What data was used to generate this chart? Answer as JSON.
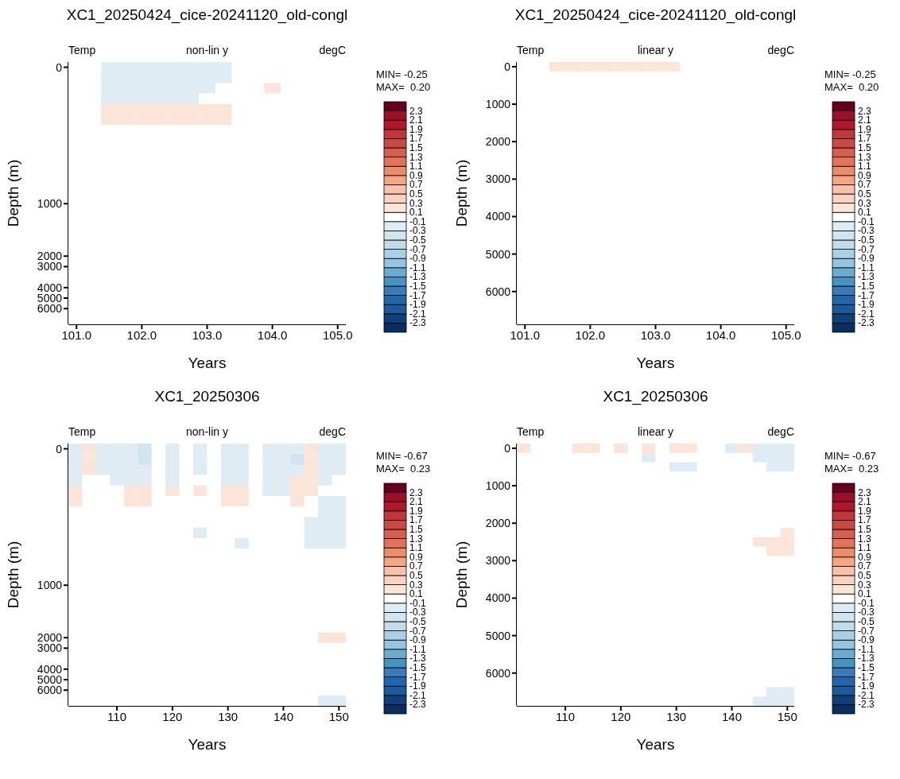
{
  "chart_data": [
    {
      "type": "heatmap",
      "title": "XC1_20250424_cice-20241120_old-congl",
      "xlabel": "Years",
      "ylabel": "Depth (m)",
      "annotations": [
        "Temp",
        "non-lin y",
        "degC",
        "MIN= -0.25",
        "MAX=  0.20"
      ],
      "categories": [
        "101.0",
        null,
        null,
        null,
        "102.0",
        null,
        null,
        null,
        "103.0",
        null,
        null,
        null,
        "104.0",
        null,
        null,
        null,
        "105.0"
      ],
      "y_categories": [
        "0",
        null,
        null,
        null,
        null,
        null,
        null,
        null,
        null,
        null,
        null,
        null,
        null,
        "1000",
        null,
        null,
        null,
        null,
        "2000",
        "3000",
        null,
        "4000",
        "5000",
        "6000",
        null
      ],
      "clim": [
        -2.5,
        2.5
      ],
      "cticks": [
        -2.3,
        -2.1,
        -1.9,
        -1.7,
        -1.5,
        -1.3,
        -1.1,
        -0.9,
        -0.7,
        -0.5,
        -0.3,
        -0.1,
        0.1,
        0.3,
        0.5,
        0.7,
        0.9,
        1.1,
        1.3,
        1.5,
        1.7,
        1.9,
        2.1,
        2.3
      ],
      "cells": [
        [
          0,
          0,
          -0.2,
          -0.2,
          -0.2,
          -0.2,
          -0.2,
          -0.2,
          -0.2,
          -0.2,
          0,
          0,
          0,
          0,
          0,
          0,
          0
        ],
        [
          0,
          0,
          -0.2,
          -0.2,
          -0.2,
          -0.2,
          -0.2,
          -0.2,
          -0.2,
          -0.2,
          0,
          0,
          0,
          0,
          0,
          0,
          0
        ],
        [
          0,
          0,
          -0.2,
          -0.2,
          -0.2,
          -0.2,
          -0.2,
          -0.2,
          -0.2,
          0,
          0,
          0,
          0.2,
          0,
          0,
          0,
          0
        ],
        [
          0,
          0,
          -0.2,
          -0.2,
          -0.2,
          -0.2,
          -0.2,
          -0.2,
          0,
          0,
          0,
          0,
          0,
          0,
          0,
          0,
          0
        ],
        [
          0,
          0,
          0.2,
          0.2,
          0.2,
          0.2,
          0.2,
          0.2,
          0.2,
          0.2,
          0,
          0,
          0,
          0,
          0,
          0,
          0
        ],
        [
          0,
          0,
          0.2,
          0.2,
          0.2,
          0.2,
          0.2,
          0.2,
          0.2,
          0.2,
          0,
          0,
          0,
          0,
          0,
          0,
          0
        ],
        [
          0,
          0,
          0,
          0,
          0,
          0,
          0,
          0,
          0,
          0,
          0,
          0,
          0,
          0,
          0,
          0,
          0
        ],
        [
          0,
          0,
          0,
          0,
          0,
          0,
          0,
          0,
          0,
          0,
          0,
          0,
          0,
          0,
          0,
          0,
          0
        ],
        [
          0,
          0,
          0,
          0,
          0,
          0,
          0,
          0,
          0,
          0,
          0,
          0,
          0,
          0,
          0,
          0,
          0
        ],
        [
          0,
          0,
          0,
          0,
          0,
          0,
          0,
          0,
          0,
          0,
          0,
          0,
          0,
          0,
          0,
          0,
          0
        ],
        [
          0,
          0,
          0,
          0,
          0,
          0,
          0,
          0,
          0,
          0,
          0,
          0,
          0,
          0,
          0,
          0,
          0
        ],
        [
          0,
          0,
          0,
          0,
          0,
          0,
          0,
          0,
          0,
          0,
          0,
          0,
          0,
          0,
          0,
          0,
          0
        ],
        [
          0,
          0,
          0,
          0,
          0,
          0,
          0,
          0,
          0,
          0,
          0,
          0,
          0,
          0,
          0,
          0,
          0
        ],
        [
          0,
          0,
          0,
          0,
          0,
          0,
          0,
          0,
          0,
          0,
          0,
          0,
          0,
          0,
          0,
          0,
          0
        ],
        [
          0,
          0,
          0,
          0,
          0,
          0,
          0,
          0,
          0,
          0,
          0,
          0,
          0,
          0,
          0,
          0,
          0
        ],
        [
          0,
          0,
          0,
          0,
          0,
          0,
          0,
          0,
          0,
          0,
          0,
          0,
          0,
          0,
          0,
          0,
          0
        ],
        [
          0,
          0,
          0,
          0,
          0,
          0,
          0,
          0,
          0,
          0,
          0,
          0,
          0,
          0,
          0,
          0,
          0
        ],
        [
          0,
          0,
          0,
          0,
          0,
          0,
          0,
          0,
          0,
          0,
          0,
          0,
          0,
          0,
          0,
          0,
          0
        ],
        [
          0,
          0,
          0,
          0,
          0,
          0,
          0,
          0,
          0,
          0,
          0,
          0,
          0,
          0,
          0,
          0,
          0
        ],
        [
          0,
          0,
          0,
          0,
          0,
          0,
          0,
          0,
          0,
          0,
          0,
          0,
          0,
          0,
          0,
          0,
          0
        ],
        [
          0,
          0,
          0,
          0,
          0,
          0,
          0,
          0,
          0,
          0,
          0,
          0,
          0,
          0,
          0,
          0,
          0
        ],
        [
          0,
          0,
          0,
          0,
          0,
          0,
          0,
          0,
          0,
          0,
          0,
          0,
          0,
          0,
          0,
          0,
          0
        ],
        [
          0,
          0,
          0,
          0,
          0,
          0,
          0,
          0,
          0,
          0,
          0,
          0,
          0,
          0,
          0,
          0,
          0
        ],
        [
          0,
          0,
          0,
          0,
          0,
          0,
          0,
          0,
          0,
          0,
          0,
          0,
          0,
          0,
          0,
          0,
          0
        ],
        [
          0,
          0,
          0,
          0,
          0,
          0,
          0,
          0,
          0,
          0,
          0,
          0,
          0,
          0,
          0,
          0,
          0
        ]
      ]
    },
    {
      "type": "heatmap",
      "title": "XC1_20250424_cice-20241120_old-congl",
      "xlabel": "Years",
      "ylabel": "Depth (m)",
      "annotations": [
        "Temp",
        "linear y",
        "degC",
        "MIN= -0.25",
        "MAX=  0.20"
      ],
      "categories": [
        "101.0",
        null,
        null,
        null,
        "102.0",
        null,
        null,
        null,
        "103.0",
        null,
        null,
        null,
        "104.0",
        null,
        null,
        null,
        "105.0"
      ],
      "y_categories": [
        "0",
        null,
        null,
        null,
        "1000",
        null,
        null,
        null,
        "2000",
        null,
        null,
        null,
        "3000",
        null,
        null,
        null,
        "4000",
        null,
        null,
        null,
        "5000",
        null,
        null,
        null,
        "6000",
        null,
        null,
        null
      ],
      "clim": [
        -2.5,
        2.5
      ],
      "cticks": [
        -2.3,
        -2.1,
        -1.9,
        -1.7,
        -1.5,
        -1.3,
        -1.1,
        -0.9,
        -0.7,
        -0.5,
        -0.3,
        -0.1,
        0.1,
        0.3,
        0.5,
        0.7,
        0.9,
        1.1,
        1.3,
        1.5,
        1.7,
        1.9,
        2.1,
        2.3
      ],
      "cells": [
        [
          0,
          0,
          0.2,
          0.2,
          0.2,
          0.2,
          0.2,
          0.2,
          0.2,
          0.2,
          0,
          0,
          0,
          0,
          0,
          0,
          0
        ],
        [
          0,
          0,
          0,
          0,
          0,
          0,
          0,
          0,
          0,
          0,
          0,
          0,
          0,
          0,
          0,
          0,
          0
        ],
        [
          0,
          0,
          0,
          0,
          0,
          0,
          0,
          0,
          0,
          0,
          0,
          0,
          0,
          0,
          0,
          0,
          0
        ],
        [
          0,
          0,
          0,
          0,
          0,
          0,
          0,
          0,
          0,
          0,
          0,
          0,
          0,
          0,
          0,
          0,
          0
        ],
        [
          0,
          0,
          0,
          0,
          0,
          0,
          0,
          0,
          0,
          0,
          0,
          0,
          0,
          0,
          0,
          0,
          0
        ],
        [
          0,
          0,
          0,
          0,
          0,
          0,
          0,
          0,
          0,
          0,
          0,
          0,
          0,
          0,
          0,
          0,
          0
        ],
        [
          0,
          0,
          0,
          0,
          0,
          0,
          0,
          0,
          0,
          0,
          0,
          0,
          0,
          0,
          0,
          0,
          0
        ],
        [
          0,
          0,
          0,
          0,
          0,
          0,
          0,
          0,
          0,
          0,
          0,
          0,
          0,
          0,
          0,
          0,
          0
        ],
        [
          0,
          0,
          0,
          0,
          0,
          0,
          0,
          0,
          0,
          0,
          0,
          0,
          0,
          0,
          0,
          0,
          0
        ],
        [
          0,
          0,
          0,
          0,
          0,
          0,
          0,
          0,
          0,
          0,
          0,
          0,
          0,
          0,
          0,
          0,
          0
        ],
        [
          0,
          0,
          0,
          0,
          0,
          0,
          0,
          0,
          0,
          0,
          0,
          0,
          0,
          0,
          0,
          0,
          0
        ],
        [
          0,
          0,
          0,
          0,
          0,
          0,
          0,
          0,
          0,
          0,
          0,
          0,
          0,
          0,
          0,
          0,
          0
        ],
        [
          0,
          0,
          0,
          0,
          0,
          0,
          0,
          0,
          0,
          0,
          0,
          0,
          0,
          0,
          0,
          0,
          0
        ],
        [
          0,
          0,
          0,
          0,
          0,
          0,
          0,
          0,
          0,
          0,
          0,
          0,
          0,
          0,
          0,
          0,
          0
        ],
        [
          0,
          0,
          0,
          0,
          0,
          0,
          0,
          0,
          0,
          0,
          0,
          0,
          0,
          0,
          0,
          0,
          0
        ],
        [
          0,
          0,
          0,
          0,
          0,
          0,
          0,
          0,
          0,
          0,
          0,
          0,
          0,
          0,
          0,
          0,
          0
        ],
        [
          0,
          0,
          0,
          0,
          0,
          0,
          0,
          0,
          0,
          0,
          0,
          0,
          0,
          0,
          0,
          0,
          0
        ],
        [
          0,
          0,
          0,
          0,
          0,
          0,
          0,
          0,
          0,
          0,
          0,
          0,
          0,
          0,
          0,
          0,
          0
        ],
        [
          0,
          0,
          0,
          0,
          0,
          0,
          0,
          0,
          0,
          0,
          0,
          0,
          0,
          0,
          0,
          0,
          0
        ],
        [
          0,
          0,
          0,
          0,
          0,
          0,
          0,
          0,
          0,
          0,
          0,
          0,
          0,
          0,
          0,
          0,
          0
        ],
        [
          0,
          0,
          0,
          0,
          0,
          0,
          0,
          0,
          0,
          0,
          0,
          0,
          0,
          0,
          0,
          0,
          0
        ],
        [
          0,
          0,
          0,
          0,
          0,
          0,
          0,
          0,
          0,
          0,
          0,
          0,
          0,
          0,
          0,
          0,
          0
        ],
        [
          0,
          0,
          0,
          0,
          0,
          0,
          0,
          0,
          0,
          0,
          0,
          0,
          0,
          0,
          0,
          0,
          0
        ],
        [
          0,
          0,
          0,
          0,
          0,
          0,
          0,
          0,
          0,
          0,
          0,
          0,
          0,
          0,
          0,
          0,
          0
        ],
        [
          0,
          0,
          0,
          0,
          0,
          0,
          0,
          0,
          0,
          0,
          0,
          0,
          0,
          0,
          0,
          0,
          0
        ],
        [
          0,
          0,
          0,
          0,
          0,
          0,
          0,
          0,
          0,
          0,
          0,
          0,
          0,
          0,
          0,
          0,
          0
        ],
        [
          0,
          0,
          0,
          0,
          0,
          0,
          0,
          0,
          0,
          0,
          0,
          0,
          0,
          0,
          0,
          0,
          0
        ],
        [
          0,
          0,
          0,
          0,
          0,
          0,
          0,
          0,
          0,
          0,
          0,
          0,
          0,
          0,
          0,
          0,
          0
        ]
      ]
    },
    {
      "type": "heatmap",
      "title": "XC1_20250306",
      "xlabel": "Years",
      "ylabel": "Depth (m)",
      "annotations": [
        "Temp",
        "non-lin y",
        "degC",
        "MIN= -0.67",
        "MAX=  0.23"
      ],
      "categories": [
        null,
        null,
        null,
        "110",
        null,
        null,
        null,
        "120",
        null,
        null,
        null,
        "130",
        null,
        null,
        null,
        "140",
        null,
        null,
        null,
        "150"
      ],
      "y_categories": [
        "0",
        null,
        null,
        null,
        null,
        null,
        null,
        null,
        null,
        null,
        null,
        null,
        null,
        "1000",
        null,
        null,
        null,
        null,
        "2000",
        "3000",
        null,
        "4000",
        "5000",
        "6000",
        null
      ],
      "clim": [
        -2.5,
        2.5
      ],
      "cticks": [
        -2.3,
        -2.1,
        -1.9,
        -1.7,
        -1.5,
        -1.3,
        -1.1,
        -0.9,
        -0.7,
        -0.5,
        -0.3,
        -0.1,
        0.1,
        0.3,
        0.5,
        0.7,
        0.9,
        1.1,
        1.3,
        1.5,
        1.7,
        1.9,
        2.1,
        2.3
      ],
      "cells": [
        [
          -0.2,
          0.2,
          -0.2,
          -0.2,
          -0.2,
          -0.4,
          0,
          -0.2,
          0,
          -0.2,
          0,
          -0.2,
          -0.2,
          0,
          -0.2,
          -0.2,
          -0.2,
          0.2,
          -0.2,
          -0.2
        ],
        [
          -0.2,
          0.2,
          -0.2,
          -0.2,
          -0.2,
          -0.4,
          0,
          -0.2,
          0,
          -0.2,
          0,
          -0.2,
          -0.2,
          0,
          -0.2,
          -0.2,
          -0.4,
          0.2,
          -0.2,
          -0.2
        ],
        [
          -0.2,
          0.2,
          -0.2,
          -0.2,
          -0.2,
          -0.2,
          0,
          -0.2,
          0,
          -0.2,
          0,
          -0.2,
          -0.2,
          0,
          -0.2,
          -0.2,
          -0.2,
          0.2,
          -0.2,
          -0.2
        ],
        [
          -0.2,
          0,
          0,
          -0.2,
          -0.2,
          -0.2,
          0,
          -0.2,
          0,
          0,
          0,
          -0.2,
          -0.2,
          0,
          -0.2,
          -0.2,
          0.2,
          0.2,
          -0.2,
          0
        ],
        [
          0.2,
          0,
          0,
          0,
          0.2,
          0.2,
          0,
          0.2,
          0,
          0.2,
          0,
          0.2,
          0.2,
          0,
          -0.2,
          -0.2,
          0.2,
          0.2,
          0,
          0
        ],
        [
          0.2,
          0,
          0,
          0,
          0.2,
          0.2,
          0,
          0,
          0,
          0,
          0,
          0.2,
          0.2,
          0,
          0,
          0,
          0.2,
          0,
          -0.2,
          -0.2
        ],
        [
          0,
          0,
          0,
          0,
          0,
          0,
          0,
          0,
          0,
          0,
          0,
          0,
          0,
          0,
          0,
          0,
          0,
          0,
          -0.2,
          -0.2
        ],
        [
          0,
          0,
          0,
          0,
          0,
          0,
          0,
          0,
          0,
          0,
          0,
          0,
          0,
          0,
          0,
          0,
          0,
          -0.2,
          -0.2,
          -0.2
        ],
        [
          0,
          0,
          0,
          0,
          0,
          0,
          0,
          0,
          0,
          -0.2,
          0,
          0,
          0,
          0,
          0,
          0,
          0,
          -0.2,
          -0.2,
          -0.2
        ],
        [
          0,
          0,
          0,
          0,
          0,
          0,
          0,
          0,
          0,
          0,
          0,
          0,
          -0.2,
          0,
          0,
          0,
          0,
          -0.2,
          -0.2,
          -0.2
        ],
        [
          0,
          0,
          0,
          0,
          0,
          0,
          0,
          0,
          0,
          0,
          0,
          0,
          0,
          0,
          0,
          0,
          0,
          0,
          0,
          0
        ],
        [
          0,
          0,
          0,
          0,
          0,
          0,
          0,
          0,
          0,
          0,
          0,
          0,
          0,
          0,
          0,
          0,
          0,
          0,
          0,
          0
        ],
        [
          0,
          0,
          0,
          0,
          0,
          0,
          0,
          0,
          0,
          0,
          0,
          0,
          0,
          0,
          0,
          0,
          0,
          0,
          0,
          0
        ],
        [
          0,
          0,
          0,
          0,
          0,
          0,
          0,
          0,
          0,
          0,
          0,
          0,
          0,
          0,
          0,
          0,
          0,
          0,
          0,
          0
        ],
        [
          0,
          0,
          0,
          0,
          0,
          0,
          0,
          0,
          0,
          0,
          0,
          0,
          0,
          0,
          0,
          0,
          0,
          0,
          0,
          0
        ],
        [
          0,
          0,
          0,
          0,
          0,
          0,
          0,
          0,
          0,
          0,
          0,
          0,
          0,
          0,
          0,
          0,
          0,
          0,
          0,
          0
        ],
        [
          0,
          0,
          0,
          0,
          0,
          0,
          0,
          0,
          0,
          0,
          0,
          0,
          0,
          0,
          0,
          0,
          0,
          0,
          0,
          0
        ],
        [
          0,
          0,
          0,
          0,
          0,
          0,
          0,
          0,
          0,
          0,
          0,
          0,
          0,
          0,
          0,
          0,
          0,
          0,
          0,
          0
        ],
        [
          0,
          0,
          0,
          0,
          0,
          0,
          0,
          0,
          0,
          0,
          0,
          0,
          0,
          0,
          0,
          0,
          0,
          0,
          0.2,
          0.2
        ],
        [
          0,
          0,
          0,
          0,
          0,
          0,
          0,
          0,
          0,
          0,
          0,
          0,
          0,
          0,
          0,
          0,
          0,
          0,
          0,
          0
        ],
        [
          0,
          0,
          0,
          0,
          0,
          0,
          0,
          0,
          0,
          0,
          0,
          0,
          0,
          0,
          0,
          0,
          0,
          0,
          0,
          0
        ],
        [
          0,
          0,
          0,
          0,
          0,
          0,
          0,
          0,
          0,
          0,
          0,
          0,
          0,
          0,
          0,
          0,
          0,
          0,
          0,
          0
        ],
        [
          0,
          0,
          0,
          0,
          0,
          0,
          0,
          0,
          0,
          0,
          0,
          0,
          0,
          0,
          0,
          0,
          0,
          0,
          0,
          0
        ],
        [
          0,
          0,
          0,
          0,
          0,
          0,
          0,
          0,
          0,
          0,
          0,
          0,
          0,
          0,
          0,
          0,
          0,
          0,
          0,
          0
        ],
        [
          0,
          0,
          0,
          0,
          0,
          0,
          0,
          0,
          0,
          0,
          0,
          0,
          0,
          0,
          0,
          0,
          0,
          0,
          -0.2,
          -0.2
        ]
      ]
    },
    {
      "type": "heatmap",
      "title": "XC1_20250306",
      "xlabel": "Years",
      "ylabel": "Depth (m)",
      "annotations": [
        "Temp",
        "linear y",
        "degC",
        "MIN= -0.67",
        "MAX=  0.23"
      ],
      "categories": [
        null,
        null,
        null,
        "110",
        null,
        null,
        null,
        "120",
        null,
        null,
        null,
        "130",
        null,
        null,
        null,
        "140",
        null,
        null,
        null,
        "150"
      ],
      "y_categories": [
        "0",
        null,
        null,
        null,
        "1000",
        null,
        null,
        null,
        "2000",
        null,
        null,
        null,
        "3000",
        null,
        null,
        null,
        "4000",
        null,
        null,
        null,
        "5000",
        null,
        null,
        null,
        "6000",
        null,
        null,
        null
      ],
      "clim": [
        -2.5,
        2.5
      ],
      "cticks": [
        -2.3,
        -2.1,
        -1.9,
        -1.7,
        -1.5,
        -1.3,
        -1.1,
        -0.9,
        -0.7,
        -0.5,
        -0.3,
        -0.1,
        0.1,
        0.3,
        0.5,
        0.7,
        0.9,
        1.1,
        1.3,
        1.5,
        1.7,
        1.9,
        2.1,
        2.3
      ],
      "cells": [
        [
          0.2,
          0,
          0,
          0,
          0.2,
          0.2,
          0,
          0.2,
          0,
          0.2,
          0,
          0.2,
          0.2,
          0,
          0,
          -0.2,
          0.2,
          -0.2,
          -0.2,
          -0.2
        ],
        [
          0,
          0,
          0,
          0,
          0,
          0,
          0,
          0,
          0,
          -0.2,
          0,
          0,
          0,
          0,
          0,
          0,
          0,
          -0.2,
          -0.2,
          -0.2
        ],
        [
          0,
          0,
          0,
          0,
          0,
          0,
          0,
          0,
          0,
          0,
          0,
          -0.2,
          -0.2,
          0,
          0,
          0,
          0,
          0,
          -0.2,
          -0.2
        ],
        [
          0,
          0,
          0,
          0,
          0,
          0,
          0,
          0,
          0,
          0,
          0,
          0,
          0,
          0,
          0,
          0,
          0,
          0,
          0,
          0
        ],
        [
          0,
          0,
          0,
          0,
          0,
          0,
          0,
          0,
          0,
          0,
          0,
          0,
          0,
          0,
          0,
          0,
          0,
          0,
          0,
          0
        ],
        [
          0,
          0,
          0,
          0,
          0,
          0,
          0,
          0,
          0,
          0,
          0,
          0,
          0,
          0,
          0,
          0,
          0,
          0,
          0,
          0
        ],
        [
          0,
          0,
          0,
          0,
          0,
          0,
          0,
          0,
          0,
          0,
          0,
          0,
          0,
          0,
          0,
          0,
          0,
          0,
          0,
          0
        ],
        [
          0,
          0,
          0,
          0,
          0,
          0,
          0,
          0,
          0,
          0,
          0,
          0,
          0,
          0,
          0,
          0,
          0,
          0,
          0,
          0
        ],
        [
          0,
          0,
          0,
          0,
          0,
          0,
          0,
          0,
          0,
          0,
          0,
          0,
          0,
          0,
          0,
          0,
          0,
          0,
          0,
          0
        ],
        [
          0,
          0,
          0,
          0,
          0,
          0,
          0,
          0,
          0,
          0,
          0,
          0,
          0,
          0,
          0,
          0,
          0,
          0,
          0,
          0.2
        ],
        [
          0,
          0,
          0,
          0,
          0,
          0,
          0,
          0,
          0,
          0,
          0,
          0,
          0,
          0,
          0,
          0,
          0,
          0.2,
          0.2,
          0.2
        ],
        [
          0,
          0,
          0,
          0,
          0,
          0,
          0,
          0,
          0,
          0,
          0,
          0,
          0,
          0,
          0,
          0,
          0,
          0,
          0.2,
          0.2
        ],
        [
          0,
          0,
          0,
          0,
          0,
          0,
          0,
          0,
          0,
          0,
          0,
          0,
          0,
          0,
          0,
          0,
          0,
          0,
          0,
          0
        ],
        [
          0,
          0,
          0,
          0,
          0,
          0,
          0,
          0,
          0,
          0,
          0,
          0,
          0,
          0,
          0,
          0,
          0,
          0,
          0,
          0
        ],
        [
          0,
          0,
          0,
          0,
          0,
          0,
          0,
          0,
          0,
          0,
          0,
          0,
          0,
          0,
          0,
          0,
          0,
          0,
          0,
          0
        ],
        [
          0,
          0,
          0,
          0,
          0,
          0,
          0,
          0,
          0,
          0,
          0,
          0,
          0,
          0,
          0,
          0,
          0,
          0,
          0,
          0
        ],
        [
          0,
          0,
          0,
          0,
          0,
          0,
          0,
          0,
          0,
          0,
          0,
          0,
          0,
          0,
          0,
          0,
          0,
          0,
          0,
          0
        ],
        [
          0,
          0,
          0,
          0,
          0,
          0,
          0,
          0,
          0,
          0,
          0,
          0,
          0,
          0,
          0,
          0,
          0,
          0,
          0,
          0
        ],
        [
          0,
          0,
          0,
          0,
          0,
          0,
          0,
          0,
          0,
          0,
          0,
          0,
          0,
          0,
          0,
          0,
          0,
          0,
          0,
          0
        ],
        [
          0,
          0,
          0,
          0,
          0,
          0,
          0,
          0,
          0,
          0,
          0,
          0,
          0,
          0,
          0,
          0,
          0,
          0,
          0,
          0
        ],
        [
          0,
          0,
          0,
          0,
          0,
          0,
          0,
          0,
          0,
          0,
          0,
          0,
          0,
          0,
          0,
          0,
          0,
          0,
          0,
          0
        ],
        [
          0,
          0,
          0,
          0,
          0,
          0,
          0,
          0,
          0,
          0,
          0,
          0,
          0,
          0,
          0,
          0,
          0,
          0,
          0,
          0
        ],
        [
          0,
          0,
          0,
          0,
          0,
          0,
          0,
          0,
          0,
          0,
          0,
          0,
          0,
          0,
          0,
          0,
          0,
          0,
          0,
          0
        ],
        [
          0,
          0,
          0,
          0,
          0,
          0,
          0,
          0,
          0,
          0,
          0,
          0,
          0,
          0,
          0,
          0,
          0,
          0,
          0,
          0
        ],
        [
          0,
          0,
          0,
          0,
          0,
          0,
          0,
          0,
          0,
          0,
          0,
          0,
          0,
          0,
          0,
          0,
          0,
          0,
          0,
          0
        ],
        [
          0,
          0,
          0,
          0,
          0,
          0,
          0,
          0,
          0,
          0,
          0,
          0,
          0,
          0,
          0,
          0,
          0,
          0,
          0,
          0
        ],
        [
          0,
          0,
          0,
          0,
          0,
          0,
          0,
          0,
          0,
          0,
          0,
          0,
          0,
          0,
          0,
          0,
          0,
          0,
          -0.2,
          -0.2
        ],
        [
          0,
          0,
          0,
          0,
          0,
          0,
          0,
          0,
          0,
          0,
          0,
          0,
          0,
          0,
          0,
          0,
          0,
          -0.2,
          -0.2,
          -0.2
        ]
      ]
    }
  ]
}
